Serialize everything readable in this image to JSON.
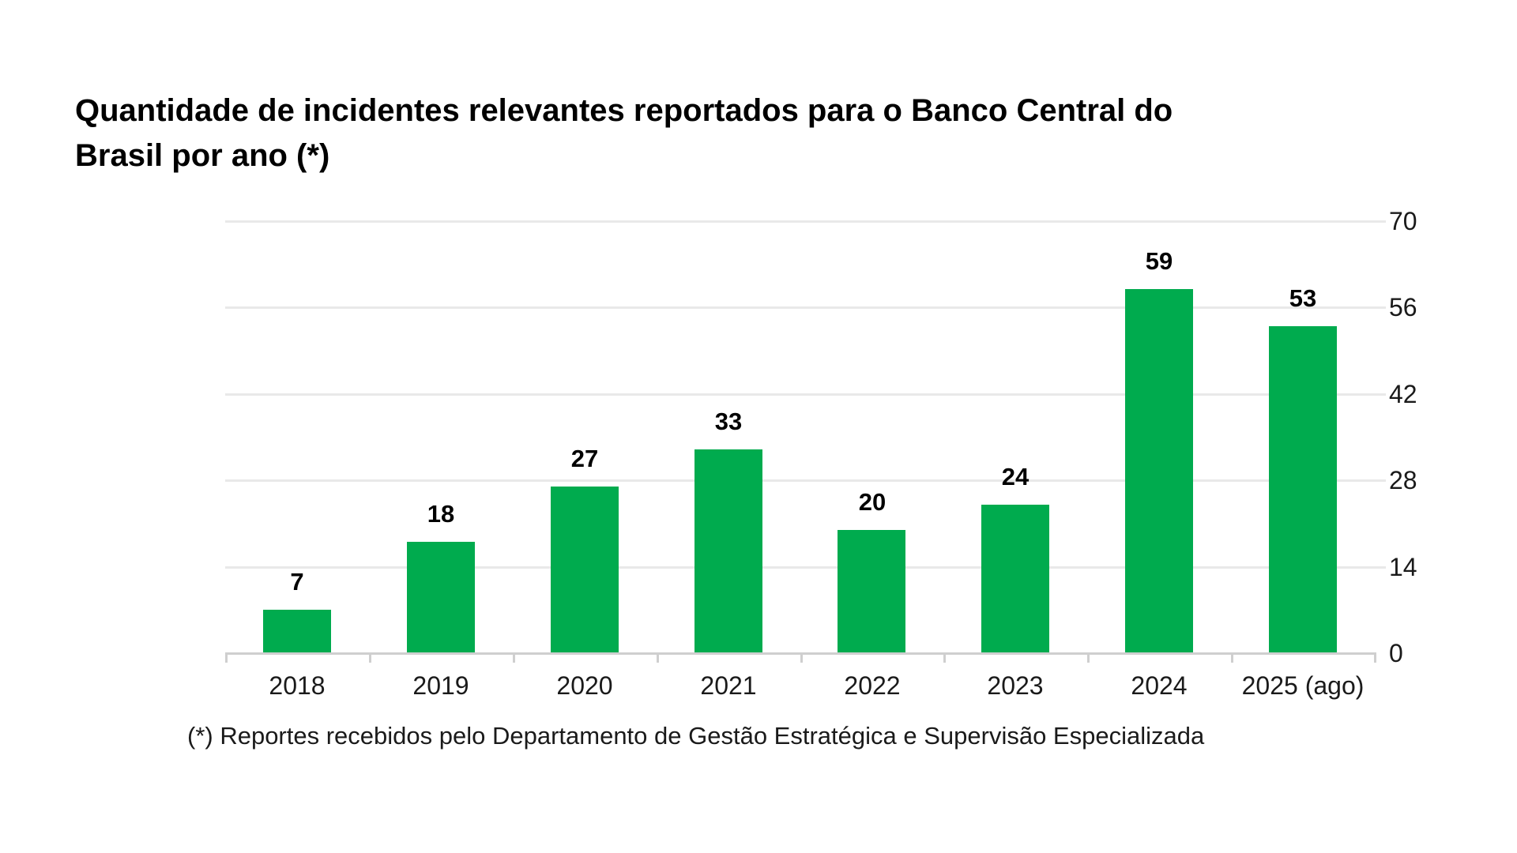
{
  "chart_data": {
    "type": "bar",
    "title": "Quantidade de incidentes relevantes reportados para o Banco Central do Brasil por ano (*)",
    "title_lines": [
      "Quantidade de incidentes relevantes reportados para o Banco Central do",
      "Brasil por ano (*)"
    ],
    "footnote": "(*) Reportes recebidos pelo Departamento de Gestão Estratégica e Supervisão Especializada",
    "categories": [
      "2018",
      "2019",
      "2020",
      "2021",
      "2022",
      "2023",
      "2024",
      "2025 (ago)"
    ],
    "values": [
      7,
      18,
      27,
      33,
      20,
      24,
      59,
      53
    ],
    "data_labels": [
      "7",
      "18",
      "27",
      "33",
      "20",
      "24",
      "59",
      "53"
    ],
    "xlabel": "",
    "ylabel": "",
    "ylim": [
      0,
      70
    ],
    "y_ticks": [
      0,
      14,
      28,
      42,
      56,
      70
    ],
    "y_axis_side": "right",
    "grid": "horizontal",
    "legend": "none",
    "bar_color": "#00ab4e"
  },
  "colors": {
    "bar": "#00ab4e",
    "gridline": "#e9e9e9",
    "axis_line": "#cfcfcf",
    "title": "#000000",
    "value_label": "#000000",
    "tick_label": "#1a1a1a",
    "footnote": "#1a1a1a",
    "background": "#ffffff"
  }
}
